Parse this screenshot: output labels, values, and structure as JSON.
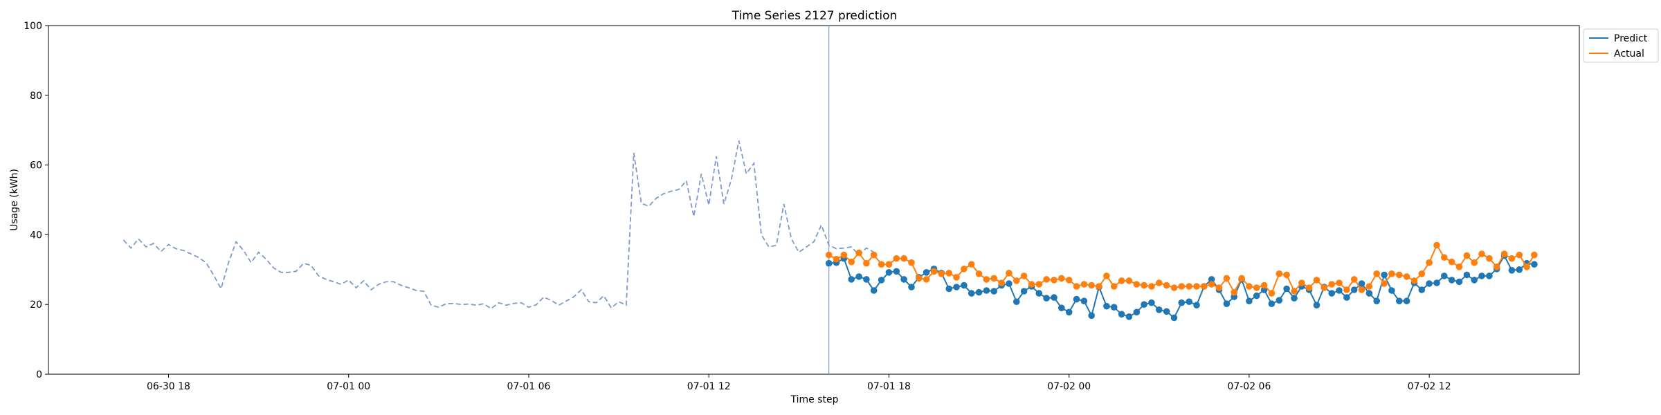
{
  "chart_data": {
    "type": "line",
    "title": "Time Series 2127 prediction",
    "xlabel": "Time step",
    "ylabel": "Usage (kWh)",
    "ylim": [
      0,
      100
    ],
    "yticks": [
      0,
      20,
      40,
      60,
      80,
      100
    ],
    "xlim": [
      "2024-06-30 14:00",
      "2024-07-02 17:00"
    ],
    "xticks": [
      {
        "t": "2024-06-30 18:00",
        "label": "06-30 18"
      },
      {
        "t": "2024-07-01 00:00",
        "label": "07-01 00"
      },
      {
        "t": "2024-07-01 06:00",
        "label": "07-01 06"
      },
      {
        "t": "2024-07-01 12:00",
        "label": "07-01 12"
      },
      {
        "t": "2024-07-01 18:00",
        "label": "07-01 18"
      },
      {
        "t": "2024-07-02 00:00",
        "label": "07-02 00"
      },
      {
        "t": "2024-07-02 06:00",
        "label": "07-02 06"
      },
      {
        "t": "2024-07-02 12:00",
        "label": "07-02 12"
      }
    ],
    "grid": false,
    "legend_position": "outside top-right",
    "forecast_start": "2024-07-01 16:00",
    "history": {
      "start": "2024-06-30 16:30",
      "interval_minutes": 15,
      "color": "#7e9bc8",
      "style": "dashed",
      "values": [
        38.5,
        36.2,
        38.8,
        36.5,
        37.5,
        35.2,
        37.2,
        36.0,
        35.5,
        34.5,
        33.5,
        32.0,
        28.5,
        24.5,
        32.0,
        38.0,
        35.5,
        32.0,
        35.0,
        33.0,
        30.5,
        29.2,
        29.2,
        29.5,
        31.8,
        31.2,
        28.2,
        27.2,
        26.5,
        25.8,
        27.0,
        24.8,
        26.8,
        24.2,
        25.8,
        26.5,
        26.5,
        25.5,
        24.8,
        24.0,
        23.8,
        19.8,
        19.2,
        20.2,
        20.3,
        20.0,
        20.1,
        19.8,
        20.2,
        18.8,
        20.5,
        19.8,
        20.3,
        20.5,
        19.2,
        19.9,
        22.1,
        21.2,
        19.8,
        21.0,
        22.2,
        24.2,
        20.8,
        20.5,
        22.5,
        19.0,
        20.8,
        19.8,
        63.5,
        49.0,
        48.2,
        50.5,
        51.8,
        52.5,
        53.0,
        55.5,
        45.2,
        57.5,
        48.5,
        62.5,
        48.8,
        55.8,
        67.0,
        57.5,
        60.5,
        40.0,
        36.5,
        37.0,
        48.8,
        38.8,
        35.0,
        36.5,
        38.0,
        42.8,
        37.0,
        36.0,
        36.2,
        36.5,
        34.2,
        36.2,
        35.0
      ]
    },
    "series": [
      {
        "name": "Predict",
        "color": "#1f77b4",
        "start": "2024-07-01 16:00",
        "interval_minutes": 15,
        "values": [
          31.8,
          32.0,
          33.2,
          27.2,
          28.0,
          27.2,
          24.0,
          27.0,
          29.2,
          29.5,
          27.2,
          25.0,
          27.8,
          29.2,
          30.2,
          29.0,
          24.5,
          25.0,
          25.5,
          23.2,
          23.5,
          24.0,
          23.8,
          25.5,
          26.0,
          20.8,
          23.8,
          25.2,
          23.2,
          21.8,
          22.0,
          19.0,
          17.8,
          21.5,
          21.0,
          16.8,
          25.0,
          19.5,
          19.2,
          17.2,
          16.5,
          17.8,
          20.0,
          20.5,
          18.5,
          18.0,
          16.2,
          20.5,
          20.8,
          19.8,
          25.2,
          27.2,
          24.2,
          20.2,
          22.2,
          27.2,
          21.0,
          22.5,
          24.2,
          20.2,
          21.2,
          24.5,
          21.8,
          25.2,
          24.2,
          19.8,
          25.0,
          23.2,
          24.0,
          22.0,
          24.2,
          26.0,
          23.2,
          21.0,
          28.5,
          24.0,
          21.0,
          21.0,
          26.2,
          24.2,
          26.0,
          26.2,
          28.2,
          27.0,
          26.5,
          28.5,
          27.0,
          28.2,
          28.2,
          30.2,
          34.0,
          29.8,
          30.0,
          31.8,
          31.5
        ]
      },
      {
        "name": "Actual",
        "color": "#ff7f0e",
        "start": "2024-07-01 16:00",
        "interval_minutes": 15,
        "values": [
          34.2,
          33.0,
          34.2,
          32.2,
          34.8,
          31.8,
          34.2,
          31.5,
          31.5,
          33.2,
          33.2,
          32.0,
          27.5,
          27.2,
          29.5,
          28.8,
          29.0,
          27.8,
          30.2,
          31.5,
          28.8,
          27.2,
          27.5,
          26.2,
          29.0,
          26.8,
          28.2,
          25.8,
          25.8,
          27.2,
          27.0,
          27.5,
          27.0,
          25.2,
          25.8,
          25.5,
          25.2,
          28.2,
          25.2,
          26.8,
          26.8,
          25.8,
          25.5,
          25.2,
          26.2,
          25.5,
          24.8,
          25.2,
          25.2,
          25.2,
          25.2,
          25.8,
          24.8,
          27.5,
          23.5,
          27.5,
          25.2,
          24.8,
          25.5,
          23.2,
          28.8,
          28.5,
          23.8,
          26.2,
          24.8,
          27.0,
          24.8,
          25.8,
          26.2,
          24.2,
          27.2,
          24.2,
          25.2,
          28.8,
          26.0,
          28.8,
          28.5,
          28.0,
          26.8,
          28.8,
          32.0,
          37.0,
          33.5,
          32.2,
          30.8,
          34.0,
          32.0,
          34.5,
          33.2,
          30.8,
          34.5,
          33.2,
          34.2,
          30.8,
          34.2
        ]
      }
    ]
  }
}
